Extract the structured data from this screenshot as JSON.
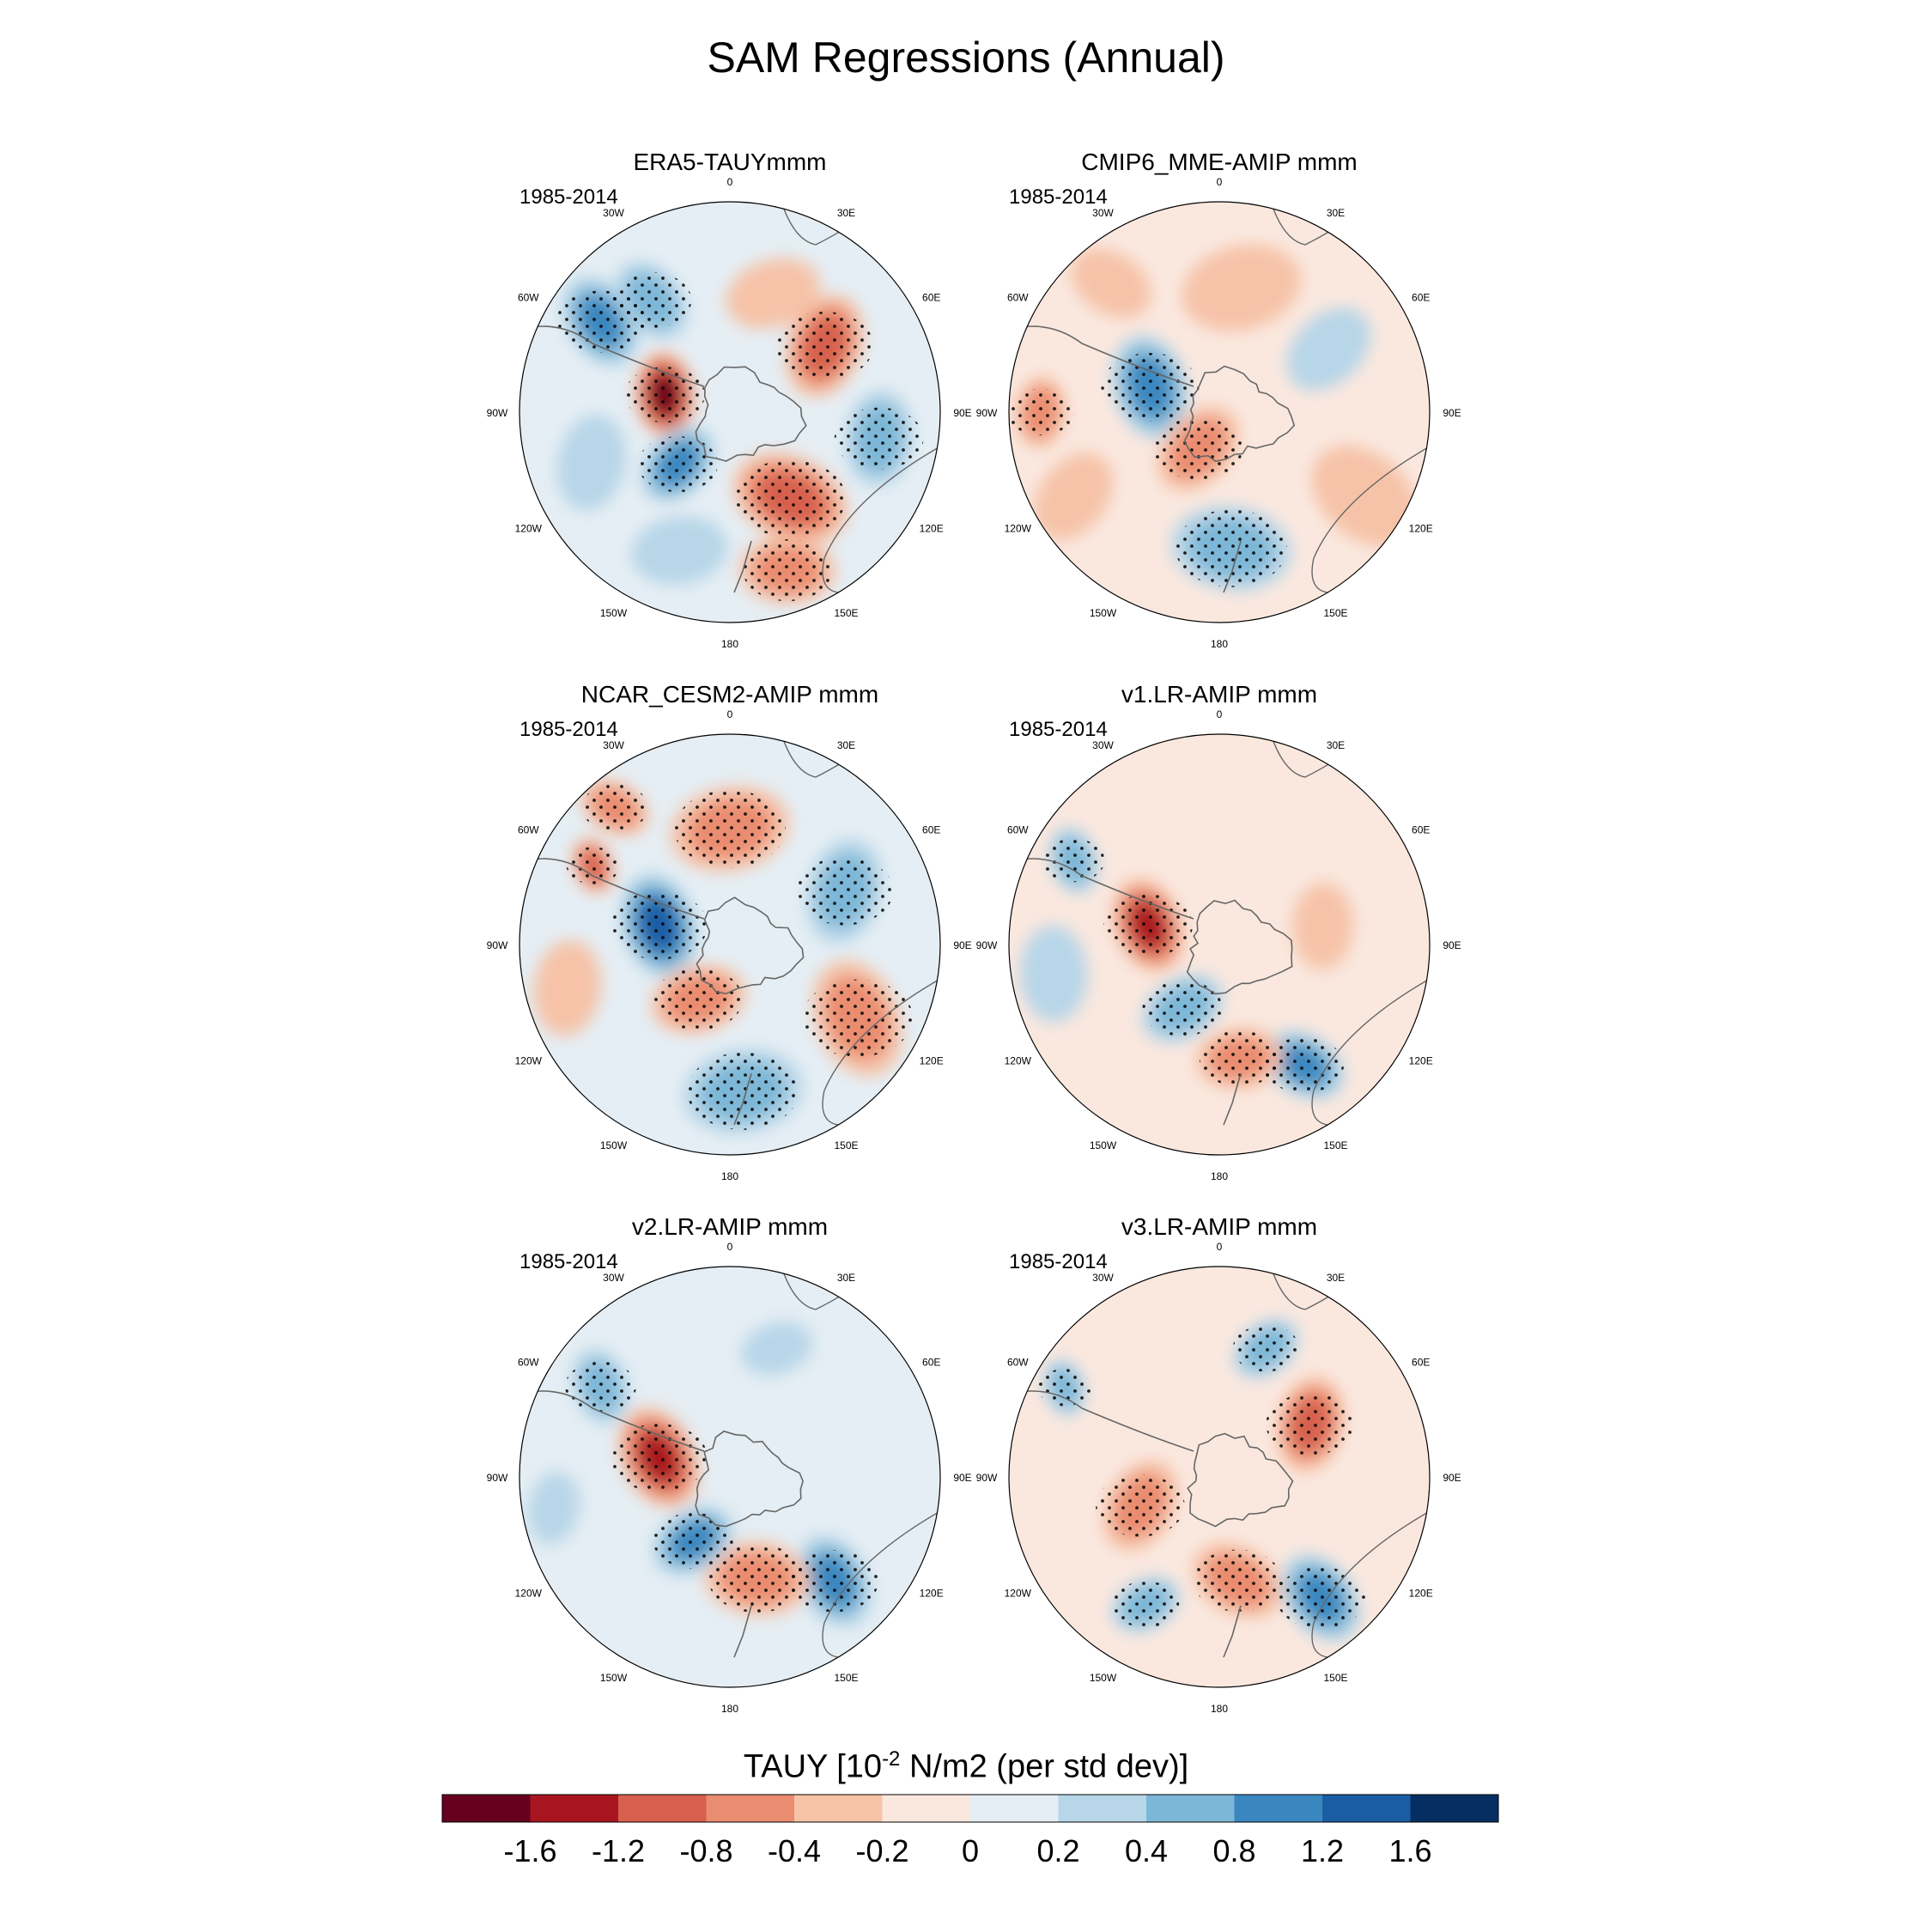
{
  "title": "SAM Regressions (Annual)",
  "colorbar": {
    "title_prefix": "TAUY [10",
    "title_exp": "-2",
    "title_suffix": " N/m2 (per std dev)]",
    "colors": [
      "#67001f",
      "#a9151f",
      "#d6604d",
      "#ea8c6f",
      "#f6c3a8",
      "#fae8df",
      "#e5eef4",
      "#b7d6e8",
      "#7db7d7",
      "#3a87bf",
      "#1a5da5",
      "#052f62"
    ],
    "tick_labels": [
      "-1.6",
      "-1.2",
      "-0.8",
      "-0.4",
      "-0.2",
      "0",
      "0.2",
      "0.4",
      "0.8",
      "1.2",
      "1.6"
    ]
  },
  "chart_data": [
    {
      "type": "heatmap",
      "projection": "south-polar-stereographic",
      "title": "ERA5-TAUYmmm",
      "period": "1985-2014",
      "lon_labels": [
        "0",
        "30E",
        "60E",
        "90E",
        "120E",
        "150E",
        "180",
        "150W",
        "120W",
        "90W",
        "60W",
        "30W"
      ],
      "features": [
        {
          "lon": -75,
          "r": 0.32,
          "value": -1.7,
          "size": 0.18
        },
        {
          "lon": -55,
          "r": 0.75,
          "value": 1.0,
          "size": 0.2
        },
        {
          "lon": -35,
          "r": 0.65,
          "value": 0.5,
          "size": 0.18
        },
        {
          "lon": 20,
          "r": 0.6,
          "value": -0.3,
          "size": 0.2
        },
        {
          "lon": 55,
          "r": 0.55,
          "value": -0.8,
          "size": 0.22
        },
        {
          "lon": 100,
          "r": 0.72,
          "value": 0.5,
          "size": 0.2
        },
        {
          "lon": 145,
          "r": 0.5,
          "value": -1.0,
          "size": 0.25
        },
        {
          "lon": 160,
          "r": 0.8,
          "value": -0.6,
          "size": 0.2
        },
        {
          "lon": -135,
          "r": 0.35,
          "value": 1.0,
          "size": 0.18
        },
        {
          "lon": -110,
          "r": 0.7,
          "value": 0.3,
          "size": 0.2
        },
        {
          "lon": -160,
          "r": 0.7,
          "value": 0.3,
          "size": 0.2
        }
      ]
    },
    {
      "type": "heatmap",
      "projection": "south-polar-stereographic",
      "title": "CMIP6_MME-AMIP  mmm",
      "period": "1985-2014",
      "lon_labels": [
        "0",
        "30E",
        "60E",
        "90E",
        "120E",
        "150E",
        "180",
        "150W",
        "120W",
        "90W",
        "60W",
        "30W"
      ],
      "features": [
        {
          "lon": -70,
          "r": 0.35,
          "value": 1.0,
          "size": 0.22
        },
        {
          "lon": -90,
          "r": 0.85,
          "value": -0.4,
          "size": 0.15
        },
        {
          "lon": -150,
          "r": 0.2,
          "value": -0.5,
          "size": 0.2
        },
        {
          "lon": 10,
          "r": 0.6,
          "value": -0.3,
          "size": 0.25
        },
        {
          "lon": 60,
          "r": 0.6,
          "value": 0.2,
          "size": 0.2
        },
        {
          "lon": 120,
          "r": 0.8,
          "value": -0.3,
          "size": 0.25
        },
        {
          "lon": 175,
          "r": 0.65,
          "value": 0.4,
          "size": 0.25
        },
        {
          "lon": -120,
          "r": 0.8,
          "value": -0.2,
          "size": 0.2
        },
        {
          "lon": -40,
          "r": 0.8,
          "value": -0.3,
          "size": 0.18
        }
      ]
    },
    {
      "type": "heatmap",
      "projection": "south-polar-stereographic",
      "title": "NCAR_CESM2-AMIP  mmm",
      "period": "1985-2014",
      "lon_labels": [
        "0",
        "30E",
        "60E",
        "90E",
        "120E",
        "150E",
        "180",
        "150W",
        "120W",
        "90W",
        "60W",
        "30W"
      ],
      "features": [
        {
          "lon": -75,
          "r": 0.35,
          "value": 1.3,
          "size": 0.22
        },
        {
          "lon": -60,
          "r": 0.75,
          "value": -0.8,
          "size": 0.12
        },
        {
          "lon": 0,
          "r": 0.55,
          "value": -0.4,
          "size": 0.25
        },
        {
          "lon": 65,
          "r": 0.6,
          "value": 0.4,
          "size": 0.22
        },
        {
          "lon": 120,
          "r": 0.7,
          "value": -0.4,
          "size": 0.25
        },
        {
          "lon": 175,
          "r": 0.7,
          "value": 0.5,
          "size": 0.25
        },
        {
          "lon": -150,
          "r": 0.3,
          "value": -0.5,
          "size": 0.2
        },
        {
          "lon": -105,
          "r": 0.8,
          "value": -0.3,
          "size": 0.2
        },
        {
          "lon": -40,
          "r": 0.85,
          "value": -0.4,
          "size": 0.15
        }
      ]
    },
    {
      "type": "heatmap",
      "projection": "south-polar-stereographic",
      "title": "v1.LR-AMIP  mmm",
      "period": "1985-2014",
      "lon_labels": [
        "0",
        "30E",
        "60E",
        "90E",
        "120E",
        "150E",
        "180",
        "150W",
        "120W",
        "90W",
        "60W",
        "30W"
      ],
      "features": [
        {
          "lon": -75,
          "r": 0.35,
          "value": -1.2,
          "size": 0.2
        },
        {
          "lon": -60,
          "r": 0.8,
          "value": 0.6,
          "size": 0.14
        },
        {
          "lon": 145,
          "r": 0.7,
          "value": 0.8,
          "size": 0.18
        },
        {
          "lon": 170,
          "r": 0.55,
          "value": -0.6,
          "size": 0.18
        },
        {
          "lon": -150,
          "r": 0.35,
          "value": 0.6,
          "size": 0.18
        },
        {
          "lon": 80,
          "r": 0.5,
          "value": -0.3,
          "size": 0.18
        },
        {
          "lon": -100,
          "r": 0.8,
          "value": 0.2,
          "size": 0.2
        }
      ]
    },
    {
      "type": "heatmap",
      "projection": "south-polar-stereographic",
      "title": "v2.LR-AMIP  mmm",
      "period": "1985-2014",
      "lon_labels": [
        "0",
        "30E",
        "60E",
        "90E",
        "120E",
        "150E",
        "180",
        "150W",
        "120W",
        "90W",
        "60W",
        "30W"
      ],
      "features": [
        {
          "lon": -75,
          "r": 0.35,
          "value": -1.2,
          "size": 0.22
        },
        {
          "lon": -55,
          "r": 0.75,
          "value": 0.5,
          "size": 0.16
        },
        {
          "lon": 20,
          "r": 0.65,
          "value": 0.3,
          "size": 0.15
        },
        {
          "lon": 135,
          "r": 0.7,
          "value": 0.8,
          "size": 0.2
        },
        {
          "lon": 165,
          "r": 0.5,
          "value": -0.6,
          "size": 0.22
        },
        {
          "lon": -150,
          "r": 0.35,
          "value": 0.8,
          "size": 0.18
        },
        {
          "lon": -100,
          "r": 0.85,
          "value": 0.3,
          "size": 0.15
        }
      ]
    },
    {
      "type": "heatmap",
      "projection": "south-polar-stereographic",
      "title": "v3.LR-AMIP  mmm",
      "period": "1985-2014",
      "lon_labels": [
        "0",
        "30E",
        "60E",
        "90E",
        "120E",
        "150E",
        "180",
        "150W",
        "120W",
        "90W",
        "60W",
        "30W"
      ],
      "features": [
        {
          "lon": 60,
          "r": 0.5,
          "value": -0.8,
          "size": 0.2
        },
        {
          "lon": 170,
          "r": 0.5,
          "value": -0.7,
          "size": 0.2
        },
        {
          "lon": -110,
          "r": 0.4,
          "value": -0.6,
          "size": 0.2
        },
        {
          "lon": 140,
          "r": 0.75,
          "value": 1.0,
          "size": 0.2
        },
        {
          "lon": 20,
          "r": 0.65,
          "value": 0.5,
          "size": 0.15
        },
        {
          "lon": -150,
          "r": 0.7,
          "value": 0.5,
          "size": 0.15
        },
        {
          "lon": -60,
          "r": 0.85,
          "value": 0.6,
          "size": 0.12
        }
      ]
    }
  ]
}
